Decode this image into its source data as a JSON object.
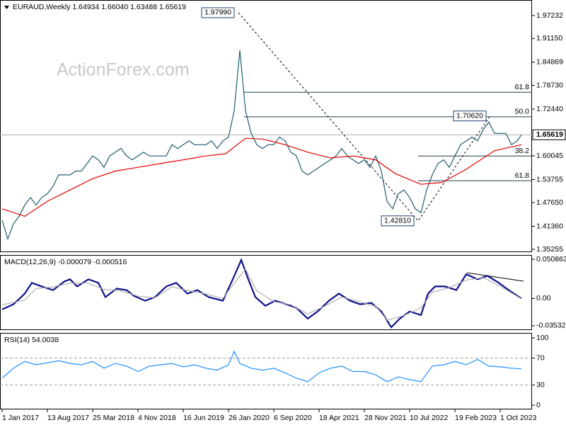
{
  "chart_data": [
    {
      "type": "line",
      "title": "EURAUD,Weekly  1.64934 1.66040 1.63488 1.65619",
      "watermark": "ActionForex.com",
      "xlim": [
        -1.5,
        374.5
      ],
      "xticks": [
        {
          "value": 0,
          "label": "1 Jan 2017"
        },
        {
          "value": 32,
          "label": "13 Aug 2017"
        },
        {
          "value": 64,
          "label": "25 Mar 2018"
        },
        {
          "value": 96,
          "label": "4 Nov 2018"
        },
        {
          "value": 128,
          "label": "16 Jun 2019"
        },
        {
          "value": 160,
          "label": "26 Jan 2020"
        },
        {
          "value": 192,
          "label": "6 Sep 2020"
        },
        {
          "value": 224,
          "label": "18 Apr 2021"
        },
        {
          "value": 256,
          "label": "28 Nov 2021"
        },
        {
          "value": 288,
          "label": "10 Jul 2022"
        },
        {
          "value": 320,
          "label": "19 Feb 2023"
        },
        {
          "value": 352,
          "label": "1 Oct 2023"
        }
      ],
      "ylim": [
        1.34504,
        2.0136
      ],
      "yticks": [
        1.97232,
        {
          "value": 1.9115,
          "label": "1.91150"
        },
        1.84869,
        {
          "value": 1.7873,
          "label": "1.78730"
        },
        {
          "value": 1.7244,
          "label": "1.72440"
        },
        1.60045,
        1.53755,
        {
          "value": 1.4765,
          "label": "1.47650"
        },
        {
          "value": 1.4136,
          "label": "1.41360"
        },
        1.35255
      ],
      "last": 1.65619,
      "series": [
        {
          "color": "#1f5d6e",
          "x": [
            0,
            4,
            8,
            12,
            16,
            20,
            24,
            28,
            32,
            36,
            40,
            44,
            48,
            52,
            56,
            60,
            64,
            68,
            72,
            76,
            80,
            84,
            88,
            92,
            96,
            100,
            104,
            108,
            112,
            116,
            120,
            124,
            128,
            132,
            136,
            140,
            144,
            148,
            152,
            156,
            160,
            164,
            168,
            172,
            176,
            180,
            184,
            188,
            192,
            196,
            200,
            204,
            208,
            212,
            216,
            220,
            224,
            228,
            232,
            236,
            240,
            244,
            248,
            252,
            256,
            260,
            264,
            268,
            272,
            276,
            280,
            284,
            288,
            292,
            296,
            300,
            304,
            308,
            312,
            316,
            320,
            324,
            328,
            332,
            336,
            340,
            344,
            348,
            352,
            356,
            360,
            364,
            367
          ],
          "values": [
            1.43,
            1.38,
            1.42,
            1.44,
            1.47,
            1.49,
            1.47,
            1.49,
            1.5,
            1.52,
            1.55,
            1.55,
            1.55,
            1.56,
            1.56,
            1.58,
            1.6,
            1.59,
            1.57,
            1.6,
            1.61,
            1.62,
            1.6,
            1.59,
            1.6,
            1.61,
            1.6,
            1.6,
            1.6,
            1.6,
            1.63,
            1.62,
            1.63,
            1.64,
            1.63,
            1.63,
            1.63,
            1.64,
            1.62,
            1.64,
            1.65,
            1.72,
            1.88,
            1.72,
            1.66,
            1.63,
            1.62,
            1.63,
            1.63,
            1.65,
            1.64,
            1.61,
            1.6,
            1.56,
            1.55,
            1.56,
            1.57,
            1.58,
            1.59,
            1.6,
            1.62,
            1.6,
            1.59,
            1.58,
            1.59,
            1.57,
            1.6,
            1.56,
            1.48,
            1.46,
            1.5,
            1.51,
            1.49,
            1.46,
            1.45,
            1.51,
            1.55,
            1.58,
            1.59,
            1.57,
            1.6,
            1.63,
            1.64,
            1.65,
            1.64,
            1.67,
            1.69,
            1.66,
            1.66,
            1.66,
            1.63,
            1.64,
            1.65619
          ]
        },
        {
          "color": "#e00000",
          "x": [
            0,
            16,
            32,
            48,
            64,
            80,
            96,
            112,
            128,
            144,
            158,
            172,
            184,
            200,
            216,
            232,
            248,
            264,
            278,
            296,
            311,
            328,
            348,
            367
          ],
          "values": [
            1.46,
            1.44,
            1.48,
            1.51,
            1.54,
            1.56,
            1.57,
            1.58,
            1.59,
            1.6,
            1.606,
            1.647,
            1.645,
            1.63,
            1.61,
            1.595,
            1.6,
            1.59,
            1.553,
            1.525,
            1.53,
            1.565,
            1.614,
            1.63
          ]
        }
      ],
      "points": [
        {
          "x": 167,
          "value": 1.9799,
          "label": "1.97990"
        },
        {
          "x": 294,
          "value": 1.4281,
          "label": "1.42810"
        },
        {
          "x": 345,
          "value": 1.7062,
          "label": "1.70620"
        }
      ],
      "levels": [
        {
          "x": 171,
          "price": 1.7691,
          "label": "61.8"
        },
        {
          "x": 171,
          "price": 1.704,
          "label": "50.0"
        },
        {
          "x": 294,
          "price": 1.6,
          "label": "38.2"
        },
        {
          "x": 294,
          "price": 1.5344,
          "label": "61.8"
        }
      ]
    },
    {
      "type": "line",
      "title": "MACD(12,26,9) -0.000079 -0.000516",
      "ylim": [
        -0.0409,
        0.0564
      ],
      "yticks": [
        0.050863,
        {
          "value": 0,
          "label": "0.00"
        },
        -0.035322
      ],
      "series": [
        {
          "color": "#10108a",
          "x": [
            0,
            8,
            16,
            21,
            28,
            36,
            44,
            48,
            53,
            61,
            68,
            73,
            81,
            88,
            93,
            101,
            108,
            116,
            123,
            131,
            138,
            146,
            156,
            163,
            169,
            174,
            179,
            186,
            193,
            201,
            208,
            216,
            223,
            231,
            238,
            246,
            253,
            261,
            268,
            275,
            281,
            288,
            296,
            301,
            306,
            313,
            321,
            328,
            336,
            343,
            351,
            358,
            367
          ],
          "values": [
            -0.014,
            -0.0075,
            0.0064,
            0.0203,
            0.0156,
            0.011,
            0.0221,
            0.0249,
            0.0156,
            0.0249,
            0.0203,
            0.0018,
            0.0129,
            0.011,
            0.0036,
            -0.0029,
            0.0018,
            0.0156,
            0.0203,
            0.0064,
            0.011,
            0.0018,
            -0.0029,
            0.0249,
            0.0499,
            0.0249,
            0.0018,
            -0.0094,
            -0.0029,
            -0.0075,
            -0.0121,
            -0.026,
            -0.0168,
            -0.0029,
            0.0064,
            -0.0029,
            -0.0075,
            -0.0057,
            -0.0168,
            -0.0372,
            -0.026,
            -0.0168,
            -0.0214,
            0.0064,
            0.0156,
            0.0156,
            0.011,
            0.0314,
            0.0249,
            0.0295,
            0.0203,
            0.011,
            -7.9e-05
          ]
        },
        {
          "color": "#b0b0b0",
          "x": [
            0,
            16,
            24,
            36,
            48,
            60,
            72,
            84,
            96,
            108,
            120,
            132,
            144,
            156,
            164,
            172,
            180,
            192,
            204,
            216,
            228,
            240,
            252,
            264,
            272,
            284,
            296,
            304,
            316,
            328,
            340,
            352,
            367
          ],
          "values": [
            -0.008,
            -0.002,
            0.013,
            0.015,
            0.02,
            0.02,
            0.012,
            0.01,
            0.003,
            0.001,
            0.015,
            0.01,
            0.006,
            0,
            0.02,
            0.038,
            0.01,
            -0.004,
            -0.008,
            -0.02,
            -0.01,
            0.002,
            -0.004,
            -0.01,
            -0.028,
            -0.022,
            -0.012,
            0.008,
            0.014,
            0.024,
            0.027,
            0.016,
            -0.000516
          ]
        }
      ]
    },
    {
      "type": "line",
      "title": "RSI(14) 54.0038",
      "ylim": [
        -6.3,
        107.4
      ],
      "yticks": [
        100,
        70,
        30,
        0
      ],
      "levels": [
        70,
        30
      ],
      "series": [
        {
          "color": "#1e90ff",
          "x": [
            0,
            8,
            16,
            24,
            32,
            40,
            48,
            56,
            64,
            72,
            80,
            88,
            96,
            104,
            112,
            120,
            128,
            136,
            144,
            152,
            160,
            164,
            168,
            176,
            184,
            192,
            200,
            208,
            216,
            224,
            232,
            240,
            248,
            256,
            264,
            272,
            280,
            288,
            296,
            304,
            312,
            320,
            328,
            336,
            344,
            352,
            360,
            367
          ],
          "values": [
            40,
            55,
            65,
            60,
            63,
            66,
            62,
            60,
            65,
            55,
            62,
            58,
            50,
            58,
            60,
            62,
            57,
            60,
            55,
            52,
            60,
            80,
            62,
            55,
            52,
            55,
            48,
            40,
            35,
            48,
            55,
            58,
            50,
            50,
            45,
            35,
            42,
            38,
            35,
            58,
            60,
            65,
            60,
            68,
            58,
            57,
            55,
            54.0038
          ]
        }
      ]
    }
  ]
}
